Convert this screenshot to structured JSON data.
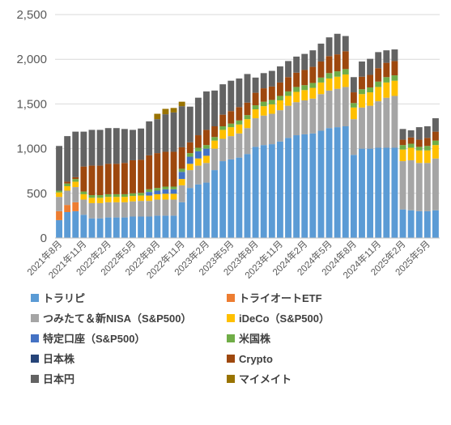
{
  "chart_data": {
    "type": "bar",
    "stacked": true,
    "grid": "horizontal",
    "legend_position": "bottom",
    "ylim": [
      0,
      2500
    ],
    "y_ticks": [
      "0",
      "500",
      "1,000",
      "1,500",
      "2,000",
      "2,500"
    ],
    "x_tick_labels": [
      "2021年8月",
      "2021年11月",
      "2022年2月",
      "2022年5月",
      "2022年8月",
      "2022年11月",
      "2023年2月",
      "2023年5月",
      "2023年8月",
      "2023年11月",
      "2024年2月",
      "2024年5月",
      "2024年8月",
      "2024年11月",
      "2025年2月",
      "2025年5月"
    ],
    "categories": [
      "2021-08",
      "2021-09",
      "2021-10",
      "2021-11",
      "2021-12",
      "2022-01",
      "2022-02",
      "2022-03",
      "2022-04",
      "2022-05",
      "2022-06",
      "2022-07",
      "2022-08",
      "2022-09",
      "2022-10",
      "2022-11",
      "2022-12",
      "2023-01",
      "2023-02",
      "2023-03",
      "2023-04",
      "2023-05",
      "2023-06",
      "2023-07",
      "2023-08",
      "2023-09",
      "2023-10",
      "2023-11",
      "2023-12",
      "2024-01",
      "2024-02",
      "2024-03",
      "2024-04",
      "2024-05",
      "2024-06",
      "2024-07",
      "2024-08",
      "2024-09",
      "2024-10",
      "2024-11",
      "2024-12",
      "2025-01",
      "2025-02",
      "2025-03",
      "2025-04",
      "2025-05",
      "2025-06"
    ],
    "series": [
      {
        "name": "トラリピ",
        "color": "#5B9BD5",
        "values": [
          200,
          290,
          300,
          260,
          220,
          220,
          230,
          230,
          230,
          240,
          240,
          240,
          250,
          250,
          250,
          400,
          560,
          600,
          620,
          760,
          860,
          880,
          900,
          940,
          1020,
          1040,
          1050,
          1080,
          1120,
          1150,
          1160,
          1170,
          1200,
          1230,
          1240,
          1250,
          930,
          1000,
          1000,
          1010,
          1010,
          1010,
          320,
          310,
          300,
          300,
          310
        ]
      },
      {
        "name": "トライオートETF",
        "color": "#ED7D31",
        "values": [
          100,
          80,
          100,
          0,
          0,
          0,
          0,
          0,
          0,
          0,
          0,
          0,
          0,
          0,
          0,
          0,
          0,
          0,
          0,
          0,
          0,
          0,
          0,
          0,
          0,
          0,
          0,
          0,
          0,
          0,
          0,
          0,
          0,
          0,
          0,
          0,
          0,
          0,
          0,
          0,
          0,
          0,
          0,
          0,
          0,
          0,
          0
        ]
      },
      {
        "name": "つみたて＆新NISA（S&P500）",
        "color": "#A5A5A5",
        "values": [
          160,
          160,
          170,
          170,
          170,
          170,
          170,
          170,
          170,
          170,
          175,
          175,
          180,
          180,
          180,
          190,
          200,
          210,
          220,
          240,
          250,
          260,
          270,
          290,
          320,
          330,
          340,
          350,
          360,
          370,
          380,
          390,
          410,
          420,
          430,
          440,
          400,
          460,
          480,
          520,
          560,
          580,
          540,
          560,
          540,
          540,
          580
        ]
      },
      {
        "name": "iDeCo（S&P500）",
        "color": "#FFC000",
        "values": [
          50,
          50,
          60,
          60,
          60,
          60,
          60,
          60,
          60,
          60,
          60,
          60,
          60,
          65,
          65,
          70,
          70,
          80,
          80,
          90,
          100,
          100,
          100,
          100,
          100,
          105,
          105,
          110,
          110,
          115,
          115,
          120,
          130,
          135,
          135,
          140,
          130,
          150,
          150,
          160,
          170,
          170,
          130,
          140,
          140,
          140,
          150
        ]
      },
      {
        "name": "特定口座（S&P500）",
        "color": "#4472C4",
        "values": [
          0,
          0,
          0,
          0,
          0,
          0,
          0,
          0,
          0,
          0,
          0,
          40,
          40,
          50,
          50,
          80,
          80,
          80,
          80,
          0,
          0,
          0,
          0,
          0,
          0,
          0,
          0,
          0,
          0,
          0,
          0,
          0,
          0,
          0,
          0,
          0,
          0,
          0,
          0,
          0,
          0,
          0,
          0,
          0,
          0,
          0,
          0
        ]
      },
      {
        "name": "米国株",
        "color": "#70AD47",
        "values": [
          20,
          30,
          30,
          30,
          30,
          30,
          30,
          30,
          30,
          30,
          30,
          30,
          30,
          30,
          30,
          35,
          40,
          40,
          40,
          40,
          40,
          40,
          45,
          45,
          45,
          50,
          50,
          50,
          50,
          55,
          55,
          55,
          55,
          60,
          60,
          60,
          50,
          55,
          55,
          60,
          60,
          60,
          50,
          45,
          40,
          50,
          50
        ]
      },
      {
        "name": "日本株",
        "color": "#264478",
        "values": [
          0,
          0,
          0,
          0,
          0,
          0,
          0,
          0,
          0,
          0,
          0,
          0,
          0,
          0,
          0,
          0,
          0,
          0,
          0,
          0,
          0,
          0,
          0,
          0,
          0,
          0,
          0,
          0,
          0,
          0,
          0,
          0,
          0,
          0,
          0,
          0,
          0,
          0,
          0,
          0,
          0,
          0,
          0,
          0,
          0,
          0,
          0
        ]
      },
      {
        "name": "Crypto",
        "color": "#9E480E",
        "values": [
          0,
          20,
          20,
          280,
          330,
          330,
          340,
          340,
          350,
          370,
          370,
          380,
          390,
          390,
          390,
          240,
          120,
          140,
          170,
          120,
          130,
          140,
          150,
          140,
          140,
          150,
          150,
          150,
          160,
          160,
          170,
          180,
          180,
          190,
          190,
          200,
          120,
          140,
          140,
          150,
          160,
          160,
          60,
          70,
          80,
          90,
          100
        ]
      },
      {
        "name": "日本円",
        "color": "#636363",
        "values": [
          500,
          510,
          510,
          390,
          400,
          400,
          400,
          400,
          380,
          340,
          350,
          380,
          380,
          420,
          440,
          460,
          400,
          420,
          430,
          400,
          340,
          340,
          320,
          320,
          170,
          170,
          175,
          180,
          180,
          180,
          180,
          185,
          200,
          210,
          230,
          170,
          170,
          170,
          180,
          180,
          140,
          130,
          120,
          80,
          140,
          130,
          150
        ]
      },
      {
        "name": "マイメイト",
        "color": "#997300",
        "values": [
          0,
          0,
          0,
          0,
          0,
          0,
          0,
          0,
          0,
          0,
          0,
          0,
          60,
          60,
          50,
          50,
          0,
          0,
          0,
          0,
          0,
          0,
          0,
          0,
          0,
          0,
          0,
          0,
          0,
          0,
          0,
          0,
          0,
          0,
          0,
          0,
          0,
          0,
          0,
          0,
          0,
          0,
          0,
          0,
          0,
          0,
          0
        ]
      }
    ]
  }
}
